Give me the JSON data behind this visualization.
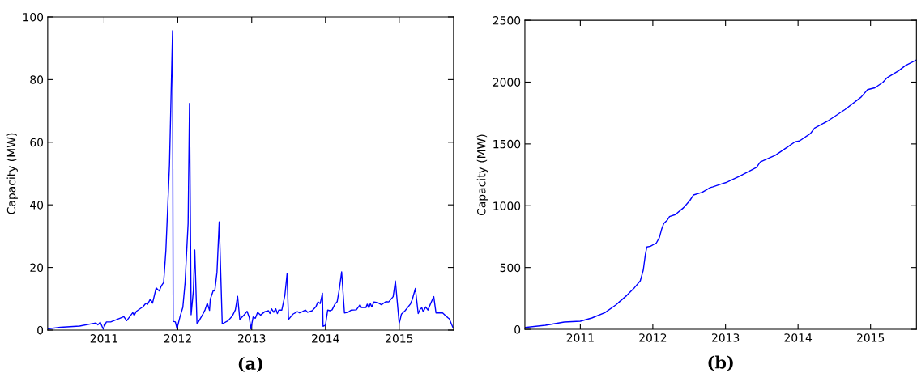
{
  "chart_data": [
    {
      "type": "line",
      "ylabel": "Capacity (MW)",
      "annotations": [
        "(a)"
      ],
      "grid": false,
      "xlim": [
        "2010-03-28",
        "2015-09-27"
      ],
      "ylim": [
        0,
        100
      ],
      "yticks": [
        0,
        20,
        40,
        60,
        80,
        100
      ],
      "xticks": [
        {
          "value": "2011-01-01",
          "label": "2011"
        },
        {
          "value": "2012-01-01",
          "label": "2012"
        },
        {
          "value": "2013-01-01",
          "label": "2013"
        },
        {
          "value": "2014-01-01",
          "label": "2014"
        },
        {
          "value": "2015-01-01",
          "label": "2015"
        }
      ],
      "series": [
        {
          "color": "#0000ff",
          "x": [
            "2010-03-29",
            "2010-05-30",
            "2010-09-02",
            "2010-11-21",
            "2010-12-02",
            "2010-12-13",
            "2010-12-28",
            "2011-01-12",
            "2011-02-03",
            "2011-04-09",
            "2011-04-23",
            "2011-05-23",
            "2011-05-30",
            "2011-06-10",
            "2011-07-13",
            "2011-07-27",
            "2011-08-04",
            "2011-08-18",
            "2011-08-29",
            "2011-09-16",
            "2011-10-01",
            "2011-10-12",
            "2011-10-23",
            "2011-11-03",
            "2011-11-21",
            "2011-12-06",
            "2011-12-09",
            "2011-12-20",
            "2011-12-28",
            "2012-01-12",
            "2012-01-26",
            "2012-02-06",
            "2012-02-21",
            "2012-02-28",
            "2012-03-07",
            "2012-03-18",
            "2012-03-25",
            "2012-04-05",
            "2012-04-12",
            "2012-05-05",
            "2012-05-15",
            "2012-05-26",
            "2012-06-06",
            "2012-06-10",
            "2012-06-25",
            "2012-07-02",
            "2012-07-13",
            "2012-07-24",
            "2012-08-08",
            "2012-09-06",
            "2012-09-27",
            "2012-10-12",
            "2012-10-23",
            "2012-11-03",
            "2012-11-25",
            "2012-12-09",
            "2012-12-20",
            "2012-12-28",
            "2013-01-08",
            "2013-01-19",
            "2013-01-30",
            "2013-02-14",
            "2013-03-07",
            "2013-03-25",
            "2013-04-01",
            "2013-04-09",
            "2013-04-20",
            "2013-04-30",
            "2013-05-08",
            "2013-05-15",
            "2013-05-30",
            "2013-06-14",
            "2013-06-25",
            "2013-07-02",
            "2013-07-24",
            "2013-08-15",
            "2013-08-26",
            "2013-09-09",
            "2013-09-24",
            "2013-10-05",
            "2013-10-27",
            "2013-11-14",
            "2013-11-25",
            "2013-12-06",
            "2013-12-17",
            "2013-12-20",
            "2014-01-01",
            "2014-01-12",
            "2014-01-23",
            "2014-02-03",
            "2014-02-17",
            "2014-02-28",
            "2014-03-11",
            "2014-03-22",
            "2014-04-05",
            "2014-04-23",
            "2014-05-08",
            "2014-06-03",
            "2014-06-21",
            "2014-06-28",
            "2014-07-20",
            "2014-07-27",
            "2014-08-04",
            "2014-08-11",
            "2014-08-18",
            "2014-08-29",
            "2014-09-16",
            "2014-10-05",
            "2014-10-27",
            "2014-11-10",
            "2014-12-02",
            "2014-12-13",
            "2015-01-01",
            "2015-01-12",
            "2015-01-30",
            "2015-02-25",
            "2015-03-07",
            "2015-03-22",
            "2015-04-05",
            "2015-04-16",
            "2015-04-23",
            "2015-04-30",
            "2015-05-12",
            "2015-05-23",
            "2015-06-03",
            "2015-06-21",
            "2015-07-02",
            "2015-08-04",
            "2015-08-29",
            "2015-09-06",
            "2015-09-24"
          ],
          "values": [
            0.4,
            0.9,
            1.3,
            2.3,
            1.7,
            2.5,
            0.3,
            2.6,
            2.6,
            4.3,
            3.0,
            5.6,
            4.7,
            6.0,
            7.5,
            8.6,
            8.2,
            9.9,
            8.6,
            13.5,
            12.5,
            14.2,
            15.2,
            25.4,
            53,
            95.6,
            2.8,
            2.6,
            0.4,
            4.3,
            7.3,
            15.1,
            34,
            72.4,
            4.9,
            12.5,
            25.6,
            2.2,
            2.6,
            5.2,
            6.5,
            8.6,
            6.3,
            9.9,
            12.7,
            12.5,
            18.5,
            34.6,
            2.0,
            3.0,
            4.5,
            6.5,
            10.8,
            3.4,
            4.9,
            6.0,
            4.0,
            0.4,
            4.2,
            3.8,
            5.7,
            4.8,
            5.9,
            6.2,
            5.3,
            6.8,
            5.7,
            6.8,
            5.3,
            6.4,
            6.4,
            11.1,
            18.0,
            3.4,
            5.1,
            5.9,
            5.5,
            5.9,
            6.4,
            5.7,
            6.2,
            7.4,
            9.0,
            8.5,
            11.8,
            1.2,
            1.6,
            6.4,
            6.2,
            6.5,
            8.3,
            9.1,
            13.3,
            18.6,
            5.5,
            5.7,
            6.4,
            6.5,
            8.1,
            7.2,
            7.2,
            8.3,
            7.1,
            8.5,
            7.4,
            9.0,
            8.8,
            8.1,
            9.1,
            9.0,
            10.7,
            15.7,
            2.1,
            5.1,
            6.2,
            8.3,
            9.8,
            13.3,
            5.3,
            6.8,
            7.1,
            5.9,
            7.4,
            6.4,
            8.1,
            10.7,
            5.5,
            5.5,
            4.0,
            3.6,
            0.8
          ]
        }
      ]
    },
    {
      "type": "line",
      "ylabel": "Capacity (MW)",
      "annotations": [
        "(b)"
      ],
      "grid": false,
      "xlim": [
        "2010-03-28",
        "2015-08-20"
      ],
      "ylim": [
        0,
        2500
      ],
      "yticks": [
        0,
        500,
        1000,
        1500,
        2000,
        2500
      ],
      "xticks": [
        {
          "value": "2011-01-01",
          "label": "2011"
        },
        {
          "value": "2012-01-01",
          "label": "2012"
        },
        {
          "value": "2013-01-01",
          "label": "2013"
        },
        {
          "value": "2014-01-01",
          "label": "2014"
        },
        {
          "value": "2015-01-01",
          "label": "2015"
        }
      ],
      "series": [
        {
          "color": "#0000ff",
          "x": [
            "2010-03-29",
            "2010-07-09",
            "2010-10-12",
            "2011-01-01",
            "2011-02-28",
            "2011-05-05",
            "2011-06-28",
            "2011-08-22",
            "2011-10-01",
            "2011-10-30",
            "2011-11-14",
            "2011-11-25",
            "2011-12-02",
            "2011-12-20",
            "2012-01-19",
            "2012-02-03",
            "2012-02-14",
            "2012-02-25",
            "2012-03-14",
            "2012-03-25",
            "2012-04-23",
            "2012-06-03",
            "2012-07-05",
            "2012-07-24",
            "2012-09-06",
            "2012-10-16",
            "2012-10-30",
            "2012-12-17",
            "2013-01-08",
            "2013-03-14",
            "2013-06-06",
            "2013-06-25",
            "2013-09-09",
            "2013-11-14",
            "2013-12-17",
            "2014-01-08",
            "2014-03-04",
            "2014-03-25",
            "2014-06-06",
            "2014-08-26",
            "2014-11-14",
            "2014-12-17",
            "2015-01-23",
            "2015-03-04",
            "2015-03-25",
            "2015-05-23",
            "2015-06-25",
            "2015-08-20"
          ],
          "values": [
            15,
            33,
            59,
            66,
            92,
            135,
            197,
            273,
            338,
            393,
            480,
            611,
            666,
            672,
            699,
            742,
            808,
            856,
            884,
            913,
            928,
            983,
            1041,
            1087,
            1109,
            1146,
            1153,
            1179,
            1190,
            1240,
            1310,
            1354,
            1408,
            1480,
            1517,
            1524,
            1583,
            1627,
            1692,
            1779,
            1878,
            1939,
            1954,
            1998,
            2035,
            2092,
            2133,
            2179
          ]
        }
      ]
    }
  ]
}
